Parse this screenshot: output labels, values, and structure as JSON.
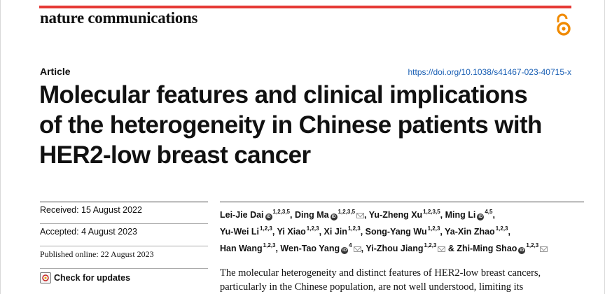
{
  "journal": {
    "name": "nature communications",
    "accent": "#e53935",
    "icon": "open-access-icon"
  },
  "article": {
    "type": "Article",
    "doi": "https://doi.org/10.1038/s41467-023-40715-x"
  },
  "title_lines": [
    "Molecular features and clinical implications",
    "of the heterogeneity in Chinese patients with",
    "HER2-low breast cancer"
  ],
  "dates": {
    "received": "Received: 15 August 2022",
    "accepted": "Accepted: 4 August 2023",
    "published": "Published online: 22 August 2023"
  },
  "check_updates": {
    "label": "Check for updates",
    "icon": "check-for-updates-icon"
  },
  "author_lines": [
    [
      {
        "name": "Lei-Jie Dai",
        "sup": "1,2,3,5",
        "orcid": true,
        "email": false,
        "sep": ","
      },
      {
        "name": "Ding Ma",
        "sup": "1,2,3,5",
        "orcid": true,
        "email": true,
        "sep": ","
      },
      {
        "name": "Yu-Zheng Xu",
        "sup": "1,2,3,5",
        "orcid": false,
        "email": false,
        "sep": ","
      },
      {
        "name": "Ming Li",
        "sup": "4,5",
        "orcid": true,
        "email": false,
        "sep": ","
      }
    ],
    [
      {
        "name": "Yu-Wei Li",
        "sup": "1,2,3",
        "orcid": false,
        "email": false,
        "sep": ","
      },
      {
        "name": "Yi Xiao",
        "sup": "1,2,3",
        "orcid": false,
        "email": false,
        "sep": ","
      },
      {
        "name": "Xi Jin",
        "sup": "1,2,3",
        "orcid": false,
        "email": false,
        "sep": ","
      },
      {
        "name": "Song-Yang Wu",
        "sup": "1,2,3",
        "orcid": false,
        "email": false,
        "sep": ","
      },
      {
        "name": "Ya-Xin Zhao",
        "sup": "1,2,3",
        "orcid": false,
        "email": false,
        "sep": ","
      }
    ],
    [
      {
        "name": "Han Wang",
        "sup": "1,2,3",
        "orcid": false,
        "email": false,
        "sep": ","
      },
      {
        "name": "Wen-Tao Yang",
        "sup": "4",
        "orcid": true,
        "email": true,
        "sep": ","
      },
      {
        "name": "Yi-Zhou Jiang",
        "sup": "1,2,3",
        "orcid": false,
        "email": true,
        "sep": ""
      },
      {
        "name": "& Zhi-Ming Shao",
        "sup": "1,2,3",
        "orcid": true,
        "email": true,
        "sep": ""
      }
    ]
  ],
  "abstract_lines": [
    "The molecular heterogeneity and distinct features of HER2-low breast cancers,",
    "particularly in the Chinese population, are not well understood, limiting its"
  ]
}
